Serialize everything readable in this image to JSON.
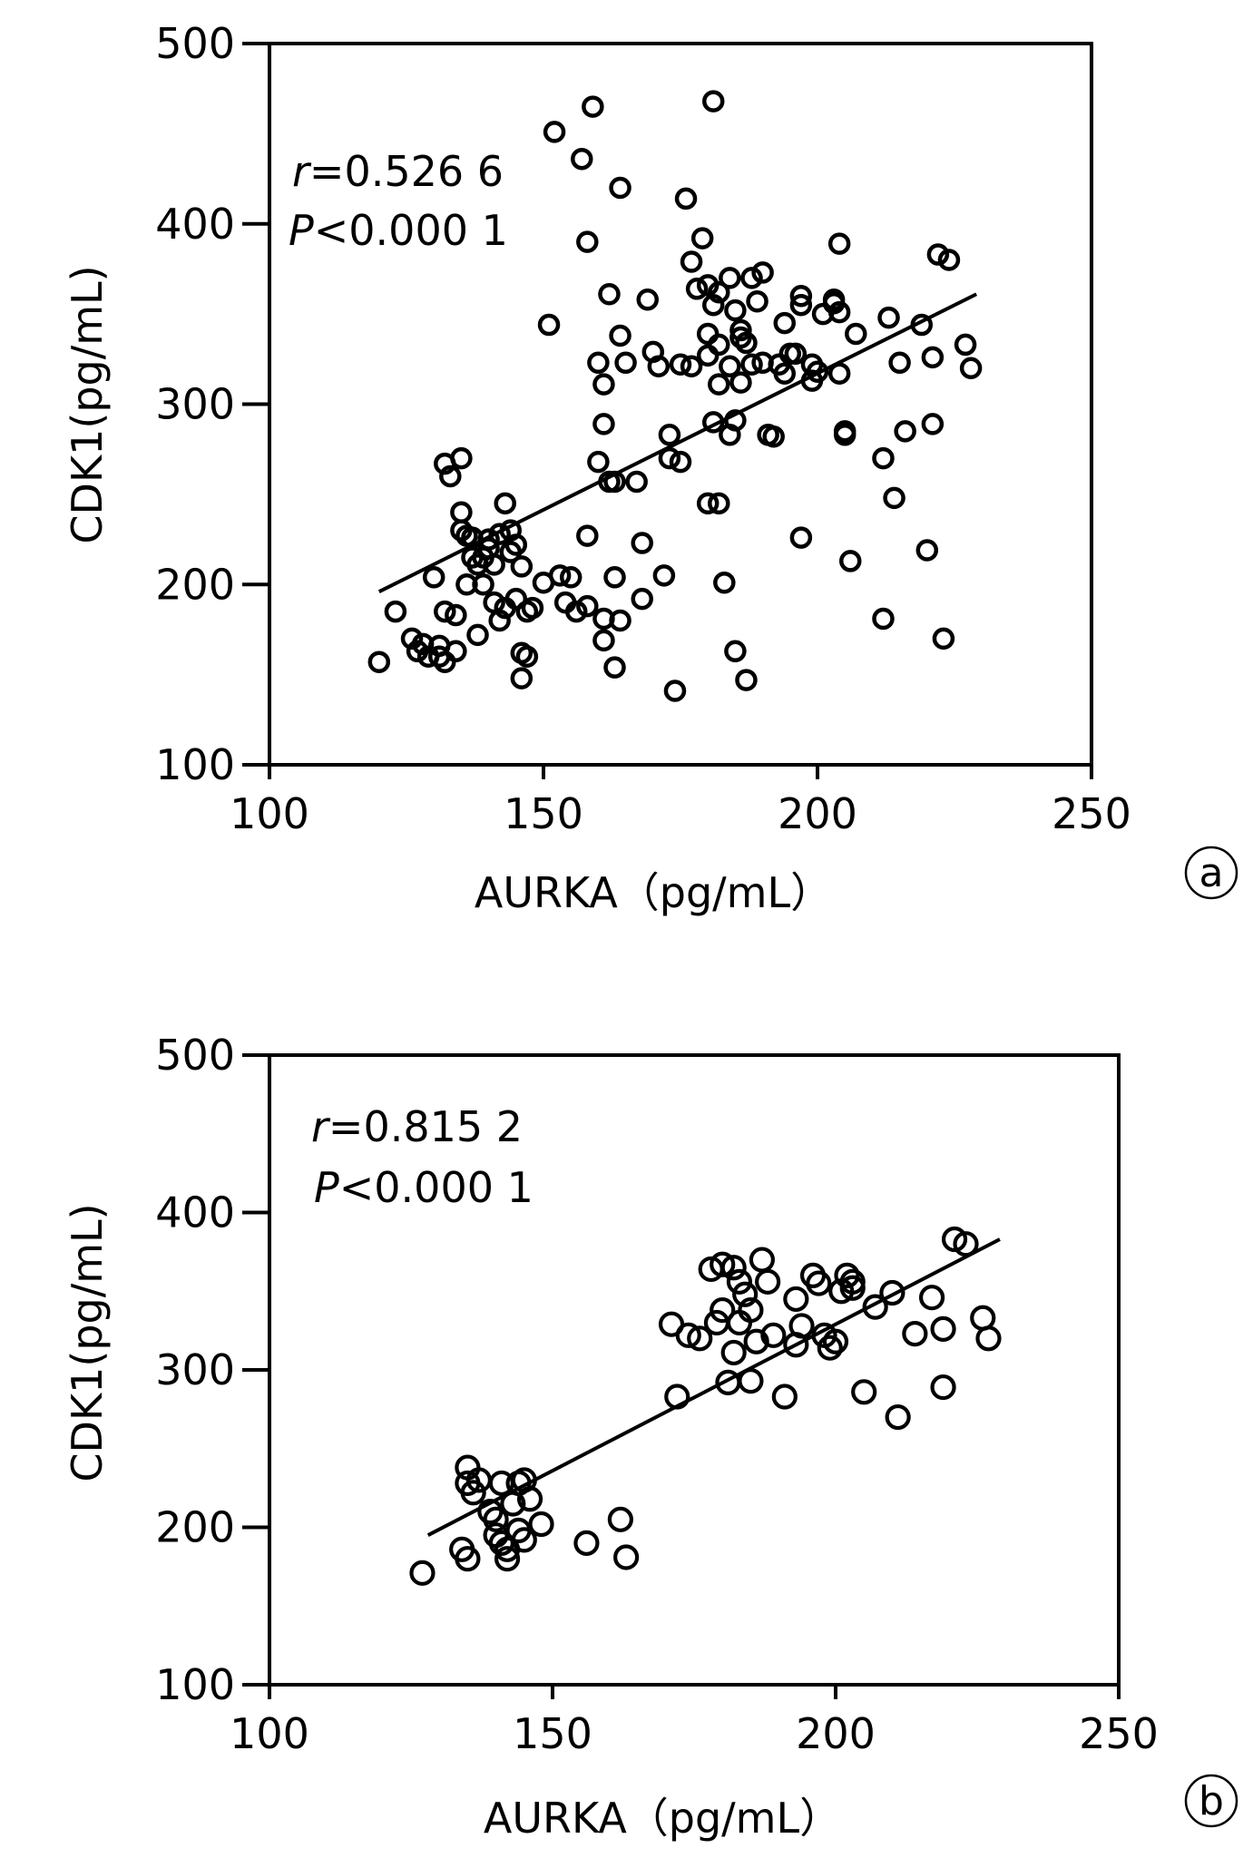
{
  "chart_data": [
    {
      "type": "scatter",
      "panel_label": "a",
      "xlabel": "AURKA（pg/mL）",
      "ylabel": "CDK1(pg/mL)",
      "xlim": [
        100,
        250
      ],
      "ylim": [
        100,
        500
      ],
      "xticks": [
        "100",
        "150",
        "200",
        "250"
      ],
      "yticks": [
        "100",
        "200",
        "300",
        "400",
        "500"
      ],
      "grid": false,
      "annotation": {
        "r_symbol": "r",
        "r_value": "=0.526 6",
        "p_symbol": "P",
        "p_value": "<0.000 1"
      },
      "regression_line": {
        "x": [
          120,
          229
        ],
        "y": [
          196,
          361
        ]
      },
      "points": [
        [
          120,
          157
        ],
        [
          123,
          185
        ],
        [
          126,
          170
        ],
        [
          127,
          163
        ],
        [
          128,
          167
        ],
        [
          129,
          160
        ],
        [
          130,
          204
        ],
        [
          131,
          166
        ],
        [
          131,
          160
        ],
        [
          132,
          157
        ],
        [
          132,
          185
        ],
        [
          132,
          267
        ],
        [
          133,
          260
        ],
        [
          134,
          183
        ],
        [
          134,
          163
        ],
        [
          135,
          270
        ],
        [
          135,
          230
        ],
        [
          135,
          240
        ],
        [
          136,
          200
        ],
        [
          136,
          227
        ],
        [
          137,
          215
        ],
        [
          137,
          226
        ],
        [
          138,
          172
        ],
        [
          138,
          211
        ],
        [
          139,
          200
        ],
        [
          139,
          215
        ],
        [
          140,
          225
        ],
        [
          140,
          220
        ],
        [
          141,
          190
        ],
        [
          141,
          211
        ],
        [
          142,
          228
        ],
        [
          142,
          180
        ],
        [
          143,
          187
        ],
        [
          143,
          245
        ],
        [
          144,
          218
        ],
        [
          144,
          230
        ],
        [
          145,
          192
        ],
        [
          145,
          222
        ],
        [
          146,
          162
        ],
        [
          146,
          148
        ],
        [
          146,
          210
        ],
        [
          147,
          185
        ],
        [
          147,
          160
        ],
        [
          148,
          187
        ],
        [
          150,
          201
        ],
        [
          151,
          344
        ],
        [
          152,
          451
        ],
        [
          153,
          205
        ],
        [
          154,
          190
        ],
        [
          155,
          204
        ],
        [
          156,
          185
        ],
        [
          157,
          436
        ],
        [
          158,
          390
        ],
        [
          158,
          188
        ],
        [
          158,
          227
        ],
        [
          159,
          465
        ],
        [
          160,
          268
        ],
        [
          160,
          323
        ],
        [
          161,
          181
        ],
        [
          161,
          169
        ],
        [
          161,
          311
        ],
        [
          161,
          289
        ],
        [
          162,
          361
        ],
        [
          162,
          257
        ],
        [
          163,
          204
        ],
        [
          163,
          257
        ],
        [
          163,
          154
        ],
        [
          164,
          180
        ],
        [
          164,
          420
        ],
        [
          164,
          338
        ],
        [
          165,
          323
        ],
        [
          167,
          257
        ],
        [
          168,
          223
        ],
        [
          168,
          192
        ],
        [
          169,
          358
        ],
        [
          170,
          329
        ],
        [
          171,
          321
        ],
        [
          172,
          205
        ],
        [
          173,
          283
        ],
        [
          173,
          270
        ],
        [
          174,
          141
        ],
        [
          175,
          268
        ],
        [
          175,
          322
        ],
        [
          176,
          414
        ],
        [
          177,
          379
        ],
        [
          177,
          321
        ],
        [
          178,
          364
        ],
        [
          179,
          392
        ],
        [
          180,
          339
        ],
        [
          180,
          245
        ],
        [
          180,
          366
        ],
        [
          180,
          327
        ],
        [
          181,
          290
        ],
        [
          181,
          468
        ],
        [
          181,
          355
        ],
        [
          182,
          311
        ],
        [
          182,
          245
        ],
        [
          182,
          333
        ],
        [
          182,
          362
        ],
        [
          183,
          201
        ],
        [
          184,
          283
        ],
        [
          184,
          321
        ],
        [
          184,
          370
        ],
        [
          185,
          291
        ],
        [
          185,
          163
        ],
        [
          185,
          352
        ],
        [
          186,
          312
        ],
        [
          186,
          341
        ],
        [
          186,
          337
        ],
        [
          187,
          147
        ],
        [
          187,
          334
        ],
        [
          188,
          370
        ],
        [
          188,
          322
        ],
        [
          189,
          357
        ],
        [
          190,
          323
        ],
        [
          190,
          373
        ],
        [
          191,
          283
        ],
        [
          192,
          282
        ],
        [
          193,
          322
        ],
        [
          194,
          345
        ],
        [
          194,
          317
        ],
        [
          195,
          328
        ],
        [
          196,
          328
        ],
        [
          197,
          226
        ],
        [
          197,
          355
        ],
        [
          197,
          360
        ],
        [
          199,
          322
        ],
        [
          199,
          313
        ],
        [
          200,
          318
        ],
        [
          201,
          350
        ],
        [
          203,
          356
        ],
        [
          203,
          358
        ],
        [
          204,
          351
        ],
        [
          204,
          389
        ],
        [
          204,
          317
        ],
        [
          205,
          283
        ],
        [
          205,
          285
        ],
        [
          206,
          213
        ],
        [
          207,
          339
        ],
        [
          212,
          181
        ],
        [
          212,
          270
        ],
        [
          213,
          348
        ],
        [
          214,
          248
        ],
        [
          215,
          323
        ],
        [
          216,
          285
        ],
        [
          219,
          344
        ],
        [
          220,
          219
        ],
        [
          221,
          289
        ],
        [
          221,
          326
        ],
        [
          222,
          383
        ],
        [
          223,
          170
        ],
        [
          224,
          380
        ],
        [
          227,
          333
        ],
        [
          228,
          320
        ]
      ]
    },
    {
      "type": "scatter",
      "panel_label": "b",
      "xlabel": "AURKA（pg/mL）",
      "ylabel": "CDK1(pg/mL)",
      "xlim": [
        100,
        250
      ],
      "ylim": [
        100,
        500
      ],
      "xticks": [
        "100",
        "150",
        "200",
        "250"
      ],
      "yticks": [
        "100",
        "200",
        "300",
        "400",
        "500"
      ],
      "grid": false,
      "annotation": {
        "r_symbol": "r",
        "r_value": "=0.815 2",
        "p_symbol": "P",
        "p_value": "<0.000 1"
      },
      "regression_line": {
        "x": [
          128,
          229
        ],
        "y": [
          195,
          383
        ]
      },
      "points": [
        [
          127,
          171
        ],
        [
          134,
          186
        ],
        [
          135,
          180
        ],
        [
          135,
          238
        ],
        [
          135,
          228
        ],
        [
          136,
          222
        ],
        [
          137,
          230
        ],
        [
          139,
          210
        ],
        [
          140,
          195
        ],
        [
          140,
          205
        ],
        [
          141,
          190
        ],
        [
          141,
          228
        ],
        [
          142,
          186
        ],
        [
          142,
          180
        ],
        [
          143,
          215
        ],
        [
          144,
          198
        ],
        [
          144,
          228
        ],
        [
          145,
          230
        ],
        [
          145,
          192
        ],
        [
          146,
          218
        ],
        [
          148,
          202
        ],
        [
          156,
          190
        ],
        [
          162,
          205
        ],
        [
          163,
          181
        ],
        [
          171,
          329
        ],
        [
          172,
          283
        ],
        [
          174,
          322
        ],
        [
          176,
          320
        ],
        [
          178,
          364
        ],
        [
          179,
          330
        ],
        [
          180,
          367
        ],
        [
          180,
          338
        ],
        [
          181,
          292
        ],
        [
          182,
          311
        ],
        [
          182,
          365
        ],
        [
          183,
          356
        ],
        [
          183,
          330
        ],
        [
          184,
          348
        ],
        [
          185,
          293
        ],
        [
          185,
          338
        ],
        [
          186,
          318
        ],
        [
          187,
          370
        ],
        [
          188,
          356
        ],
        [
          189,
          322
        ],
        [
          191,
          283
        ],
        [
          193,
          345
        ],
        [
          193,
          316
        ],
        [
          194,
          328
        ],
        [
          196,
          360
        ],
        [
          197,
          355
        ],
        [
          198,
          322
        ],
        [
          199,
          314
        ],
        [
          200,
          318
        ],
        [
          201,
          350
        ],
        [
          202,
          360
        ],
        [
          203,
          356
        ],
        [
          203,
          352
        ],
        [
          205,
          286
        ],
        [
          207,
          340
        ],
        [
          210,
          349
        ],
        [
          211,
          270
        ],
        [
          214,
          323
        ],
        [
          217,
          346
        ],
        [
          219,
          326
        ],
        [
          219,
          289
        ],
        [
          221,
          383
        ],
        [
          223,
          380
        ],
        [
          226,
          333
        ],
        [
          227,
          320
        ]
      ]
    }
  ]
}
